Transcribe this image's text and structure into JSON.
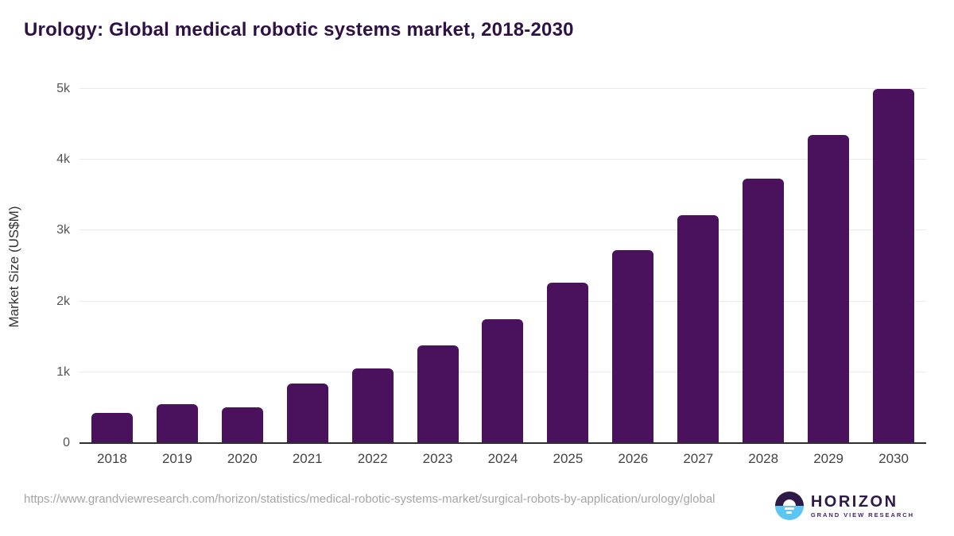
{
  "title": "Urology: Global medical robotic systems market, 2018-2030",
  "chart_data": {
    "type": "bar",
    "categories": [
      "2018",
      "2019",
      "2020",
      "2021",
      "2022",
      "2023",
      "2024",
      "2025",
      "2026",
      "2027",
      "2028",
      "2029",
      "2030"
    ],
    "values": [
      430,
      550,
      505,
      840,
      1050,
      1380,
      1750,
      2260,
      2720,
      3220,
      3730,
      4350,
      5000
    ],
    "title": "Urology: Global medical robotic systems market, 2018-2030",
    "xlabel": "",
    "ylabel": "Market Size (US$M)",
    "ylim": [
      0,
      5000
    ],
    "yticks": [
      {
        "value": 0,
        "label": "0"
      },
      {
        "value": 1000,
        "label": "1k"
      },
      {
        "value": 2000,
        "label": "2k"
      },
      {
        "value": 3000,
        "label": "3k"
      },
      {
        "value": 4000,
        "label": "4k"
      },
      {
        "value": 5000,
        "label": "5k"
      }
    ],
    "grid": true,
    "legend": "none",
    "bar_color": "#4a115c"
  },
  "footer": {
    "source_url": "https://www.grandviewresearch.com/horizon/statistics/medical-robotic-systems-market/surgical-robots-by-application/urology/global",
    "logo": {
      "name": "HORIZON",
      "subtitle": "GRAND VIEW RESEARCH",
      "icon": "horizon-sunrise-icon"
    }
  },
  "colors": {
    "title": "#2f1245",
    "bar": "#4a115c",
    "gridline": "#e9e9e9",
    "axis_line": "#2f2f2f",
    "tick_label": "#555555",
    "url_text": "#a5a5a5",
    "logo_dark": "#2e1a47",
    "logo_blue": "#5bc6f1"
  }
}
